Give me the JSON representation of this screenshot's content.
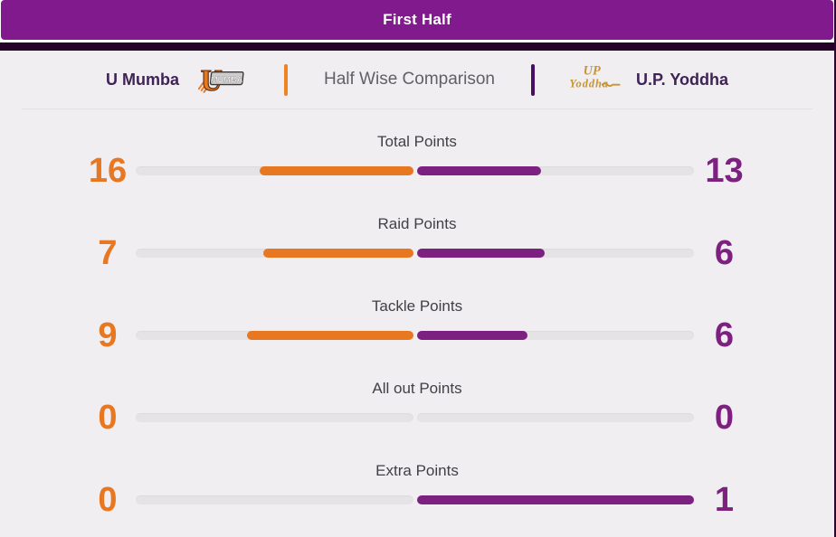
{
  "banner": {
    "title": "First Half"
  },
  "header": {
    "left_team_name": "U Mumba",
    "left_logo": {
      "letter": "U",
      "word": "MUMBA"
    },
    "center_title": "Half Wise Comparison",
    "right_logo": {
      "line1": "UP",
      "line2": "Yoddha"
    },
    "right_team_name": "U.P. Yoddha"
  },
  "colors": {
    "banner_bg": "#811b8d",
    "dark_strip": "#250327",
    "page_bg": "#f0eef0",
    "left_accent": "#e87722",
    "right_accent": "#7d2181",
    "header_divider_left": "#ee8322",
    "header_divider_right": "#4b0d63",
    "track": "#e5e3e5",
    "team_text": "#3f2356",
    "label_text": "#404046",
    "center_title_text": "#606066",
    "yoddha_gold": "#c8942f"
  },
  "chart_data": {
    "type": "bar",
    "subtype": "horizontal-paired-comparison",
    "title": "Half Wise Comparison",
    "period": "First Half",
    "categories": [
      "Total Points",
      "Raid Points",
      "Tackle Points",
      "All out Points",
      "Extra Points"
    ],
    "series": [
      {
        "name": "U Mumba",
        "color": "#e87722",
        "values": [
          16,
          7,
          9,
          0,
          0
        ]
      },
      {
        "name": "U.P. Yoddha",
        "color": "#7d2181",
        "values": [
          13,
          6,
          6,
          0,
          1
        ]
      }
    ],
    "legend_position": "header",
    "grid": false,
    "bar_rule": "per row, colored width fraction of each half-track = value / (leftValue + rightValue)"
  }
}
